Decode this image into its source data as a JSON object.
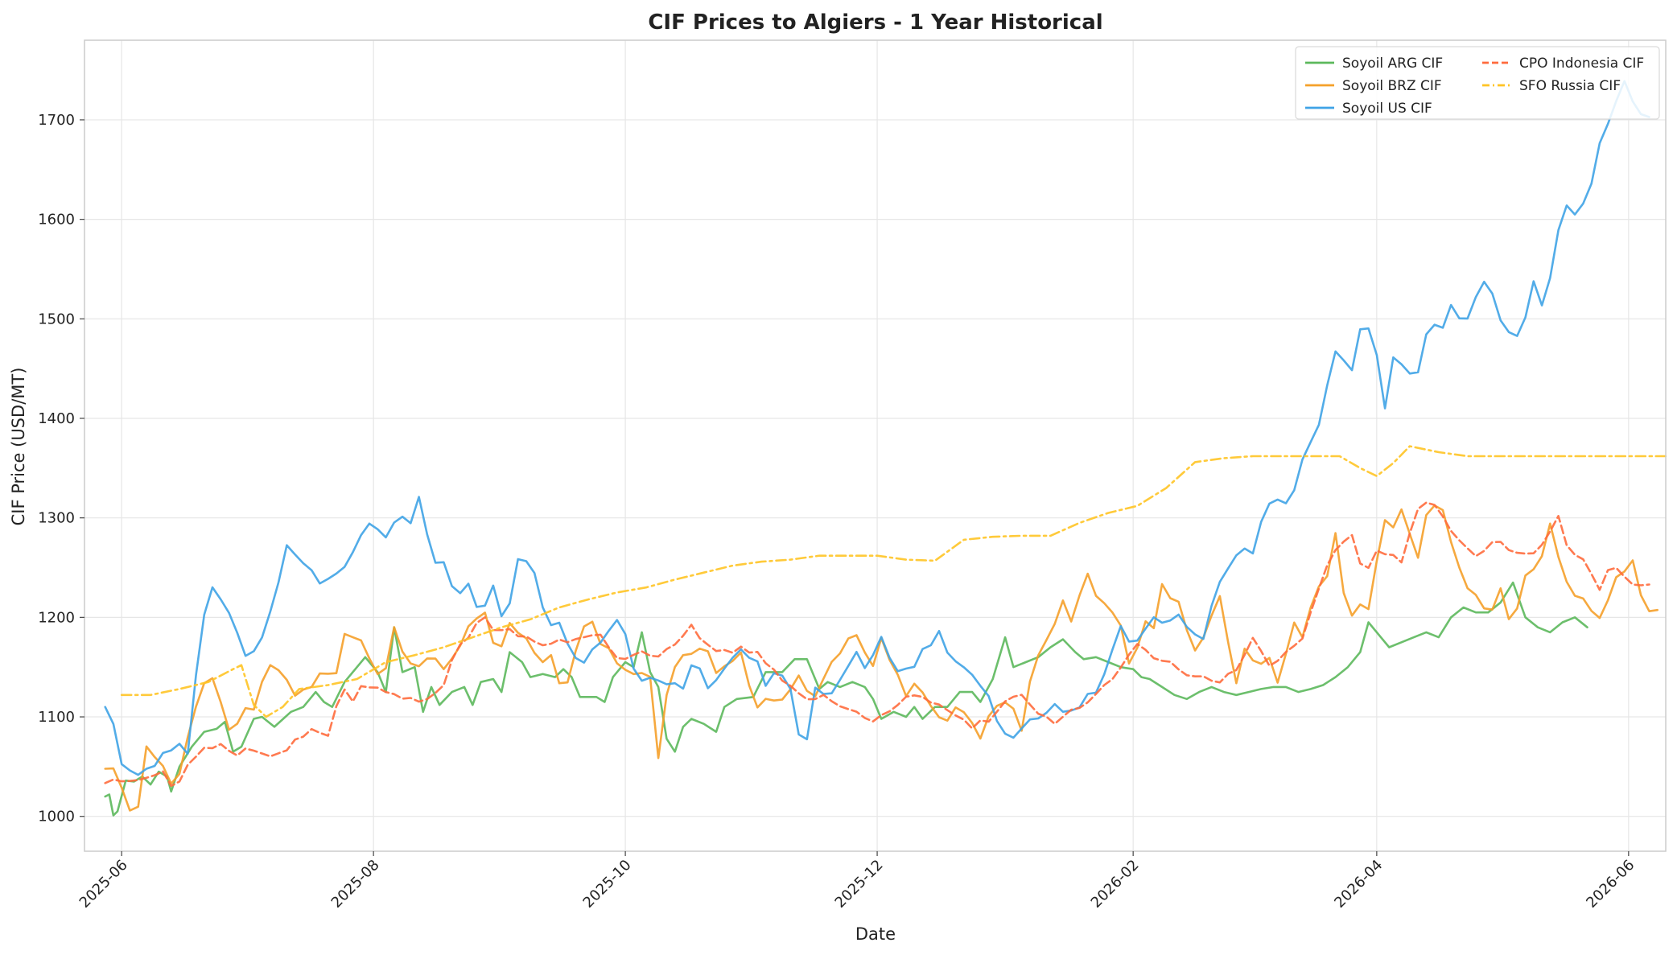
{
  "chart_data": {
    "type": "line",
    "title": "CIF Prices to Algiers - 1 Year Historical",
    "xlabel": "Date",
    "ylabel": "CIF Price (USD/MT)",
    "grid": true,
    "legend_position": "top-right",
    "xlim": [
      "2025-05-23",
      "2026-06-10"
    ],
    "ylim": [
      965,
      1780
    ],
    "x_ticks": [
      "2025-06-01",
      "2025-08-01",
      "2025-10-01",
      "2025-12-01",
      "2026-02-01",
      "2026-04-01",
      "2026-06-01"
    ],
    "x_tick_labels": [
      "2025-06",
      "2025-08",
      "2025-10",
      "2025-12",
      "2026-02",
      "2026-04",
      "2026-06"
    ],
    "y_ticks": [
      1000,
      1100,
      1200,
      1300,
      1400,
      1500,
      1600,
      1700
    ],
    "y_tick_labels": [
      "1000",
      "1100",
      "1200",
      "1300",
      "1400",
      "1500",
      "1600",
      "1700"
    ],
    "series": [
      {
        "name": "Soyoil ARG CIF",
        "color": "#5cb85c",
        "dash": "solid",
        "points": [
          [
            "2025-05-28",
            1020
          ],
          [
            "2025-05-29",
            1022
          ],
          [
            "2025-05-30",
            1001
          ],
          [
            "2025-05-31",
            1005
          ],
          [
            "2025-06-02",
            1036
          ],
          [
            "2025-06-04",
            1035
          ],
          [
            "2025-06-06",
            1040
          ],
          [
            "2025-06-08",
            1032
          ],
          [
            "2025-06-10",
            1045
          ],
          [
            "2025-06-12",
            1040
          ],
          [
            "2025-06-13",
            1025
          ],
          [
            "2025-06-15",
            1050
          ],
          [
            "2025-06-18",
            1070
          ],
          [
            "2025-06-21",
            1085
          ],
          [
            "2025-06-24",
            1088
          ],
          [
            "2025-06-26",
            1095
          ],
          [
            "2025-06-28",
            1065
          ],
          [
            "2025-06-30",
            1070
          ],
          [
            "2025-07-03",
            1098
          ],
          [
            "2025-07-05",
            1100
          ],
          [
            "2025-07-08",
            1090
          ],
          [
            "2025-07-12",
            1105
          ],
          [
            "2025-07-15",
            1110
          ],
          [
            "2025-07-18",
            1125
          ],
          [
            "2025-07-20",
            1115
          ],
          [
            "2025-07-22",
            1110
          ],
          [
            "2025-07-25",
            1135
          ],
          [
            "2025-07-28",
            1150
          ],
          [
            "2025-07-30",
            1160
          ],
          [
            "2025-08-02",
            1145
          ],
          [
            "2025-08-04",
            1125
          ],
          [
            "2025-08-06",
            1190
          ],
          [
            "2025-08-08",
            1145
          ],
          [
            "2025-08-11",
            1150
          ],
          [
            "2025-08-13",
            1105
          ],
          [
            "2025-08-15",
            1130
          ],
          [
            "2025-08-17",
            1112
          ],
          [
            "2025-08-20",
            1125
          ],
          [
            "2025-08-23",
            1130
          ],
          [
            "2025-08-25",
            1112
          ],
          [
            "2025-08-27",
            1135
          ],
          [
            "2025-08-30",
            1138
          ],
          [
            "2025-09-01",
            1125
          ],
          [
            "2025-09-03",
            1165
          ],
          [
            "2025-09-06",
            1155
          ],
          [
            "2025-09-08",
            1140
          ],
          [
            "2025-09-11",
            1143
          ],
          [
            "2025-09-14",
            1140
          ],
          [
            "2025-09-16",
            1148
          ],
          [
            "2025-09-18",
            1140
          ],
          [
            "2025-09-20",
            1120
          ],
          [
            "2025-09-24",
            1120
          ],
          [
            "2025-09-26",
            1115
          ],
          [
            "2025-09-28",
            1140
          ],
          [
            "2025-10-01",
            1155
          ],
          [
            "2025-10-03",
            1150
          ],
          [
            "2025-10-05",
            1185
          ],
          [
            "2025-10-07",
            1145
          ],
          [
            "2025-10-09",
            1130
          ],
          [
            "2025-10-11",
            1078
          ],
          [
            "2025-10-13",
            1065
          ],
          [
            "2025-10-15",
            1090
          ],
          [
            "2025-10-17",
            1098
          ],
          [
            "2025-10-20",
            1093
          ],
          [
            "2025-10-23",
            1085
          ],
          [
            "2025-10-25",
            1110
          ],
          [
            "2025-10-28",
            1118
          ],
          [
            "2025-11-01",
            1120
          ],
          [
            "2025-11-04",
            1145
          ],
          [
            "2025-11-08",
            1145
          ],
          [
            "2025-11-11",
            1158
          ],
          [
            "2025-11-14",
            1158
          ],
          [
            "2025-11-17",
            1128
          ],
          [
            "2025-11-19",
            1135
          ],
          [
            "2025-11-22",
            1130
          ],
          [
            "2025-11-25",
            1135
          ],
          [
            "2025-11-28",
            1130
          ],
          [
            "2025-11-30",
            1118
          ],
          [
            "2025-12-02",
            1098
          ],
          [
            "2025-12-05",
            1105
          ],
          [
            "2025-12-08",
            1100
          ],
          [
            "2025-12-10",
            1110
          ],
          [
            "2025-12-12",
            1098
          ],
          [
            "2025-12-15",
            1110
          ],
          [
            "2025-12-18",
            1110
          ],
          [
            "2025-12-21",
            1125
          ],
          [
            "2025-12-24",
            1125
          ],
          [
            "2025-12-26",
            1115
          ],
          [
            "2025-12-29",
            1138
          ],
          [
            "2026-01-01",
            1180
          ],
          [
            "2026-01-03",
            1150
          ],
          [
            "2026-01-06",
            1155
          ],
          [
            "2026-01-09",
            1160
          ],
          [
            "2026-01-12",
            1170
          ],
          [
            "2026-01-15",
            1178
          ],
          [
            "2026-01-18",
            1165
          ],
          [
            "2026-01-20",
            1158
          ],
          [
            "2026-01-23",
            1160
          ],
          [
            "2026-01-26",
            1155
          ],
          [
            "2026-01-29",
            1150
          ],
          [
            "2026-02-01",
            1148
          ],
          [
            "2026-02-03",
            1140
          ],
          [
            "2026-02-05",
            1138
          ],
          [
            "2026-02-08",
            1130
          ],
          [
            "2026-02-11",
            1122
          ],
          [
            "2026-02-14",
            1118
          ],
          [
            "2026-02-17",
            1125
          ],
          [
            "2026-02-20",
            1130
          ],
          [
            "2026-02-23",
            1125
          ],
          [
            "2026-02-26",
            1122
          ],
          [
            "2026-03-01",
            1125
          ],
          [
            "2026-03-04",
            1128
          ],
          [
            "2026-03-07",
            1130
          ],
          [
            "2026-03-10",
            1130
          ],
          [
            "2026-03-13",
            1125
          ],
          [
            "2026-03-16",
            1128
          ],
          [
            "2026-03-19",
            1132
          ],
          [
            "2026-03-22",
            1140
          ],
          [
            "2026-03-25",
            1150
          ],
          [
            "2026-03-28",
            1165
          ],
          [
            "2026-03-30",
            1195
          ],
          [
            "2026-04-02",
            1180
          ],
          [
            "2026-04-04",
            1170
          ],
          [
            "2026-04-07",
            1175
          ],
          [
            "2026-04-10",
            1180
          ],
          [
            "2026-04-13",
            1185
          ],
          [
            "2026-04-16",
            1180
          ],
          [
            "2026-04-19",
            1200
          ],
          [
            "2026-04-22",
            1210
          ],
          [
            "2026-04-25",
            1205
          ],
          [
            "2026-04-28",
            1205
          ],
          [
            "2026-05-01",
            1215
          ],
          [
            "2026-05-04",
            1235
          ],
          [
            "2026-05-07",
            1200
          ],
          [
            "2026-05-10",
            1190
          ],
          [
            "2026-05-13",
            1185
          ],
          [
            "2026-05-16",
            1195
          ],
          [
            "2026-05-19",
            1200
          ],
          [
            "2026-05-22",
            1190
          ]
        ]
      },
      {
        "name": "Soyoil BRZ CIF",
        "color": "#f5a02a",
        "dash": "solid",
        "points": []
      },
      {
        "name": "Soyoil US CIF",
        "color": "#3fa3e6",
        "dash": "solid",
        "points": []
      },
      {
        "name": "CPO Indonesia CIF",
        "color": "#ff6b3d",
        "dash": "dashed",
        "points": []
      },
      {
        "name": "SFO Russia CIF",
        "color": "#ffc425",
        "dash": "dashdot",
        "points": []
      }
    ]
  }
}
